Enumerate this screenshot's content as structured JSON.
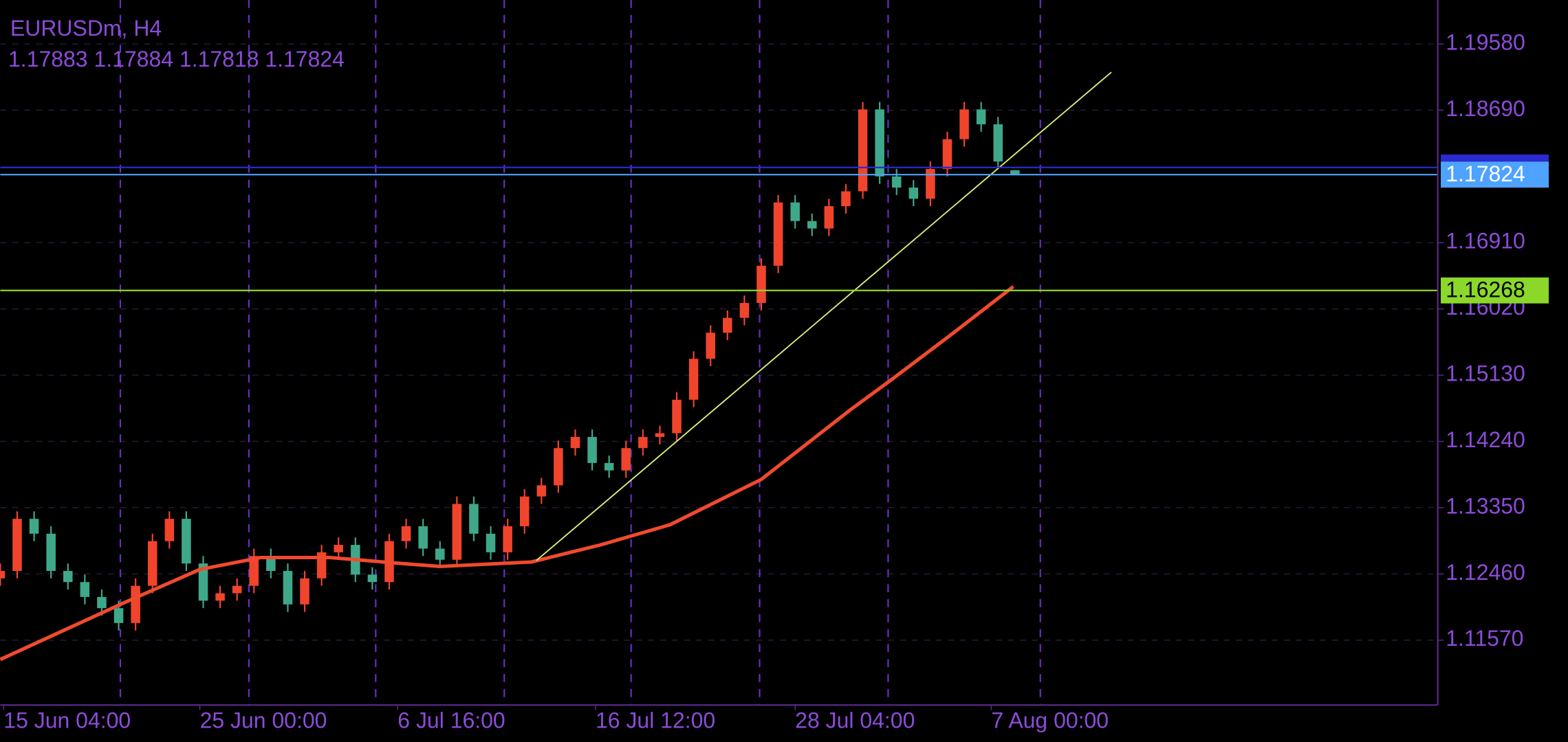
{
  "chart_data": {
    "type": "candlestick",
    "title": "EURUSDm, H4",
    "subtitle": "1.17883 1.17884 1.17818 1.17824",
    "xlim": [
      0,
      85
    ],
    "ylim": [
      1.10698,
      1.2017
    ],
    "yticks": [
      {
        "value": 1.1958,
        "label": "1.19580"
      },
      {
        "value": 1.1869,
        "label": "1.18690"
      },
      {
        "value": 1.1691,
        "label": "1.16910"
      },
      {
        "value": 1.1602,
        "label": "1.16020"
      },
      {
        "value": 1.1513,
        "label": "1.15130"
      },
      {
        "value": 1.1424,
        "label": "1.14240"
      },
      {
        "value": 1.1335,
        "label": "1.13350"
      },
      {
        "value": 1.1246,
        "label": "1.12460"
      },
      {
        "value": 1.1157,
        "label": "1.11570"
      }
    ],
    "xticks": [
      {
        "value": 0.2,
        "label": "15 Jun 04:00"
      },
      {
        "value": 11.8,
        "label": "25 Jun 00:00"
      },
      {
        "value": 23.5,
        "label": "6 Jul 16:00"
      },
      {
        "value": 35.2,
        "label": "16 Jul 12:00"
      },
      {
        "value": 47,
        "label": "28 Jul 04:00"
      },
      {
        "value": 58.6,
        "label": "7 Aug 00:00"
      }
    ],
    "separators": [
      7.1,
      14.7,
      22.2,
      29.8,
      37.3,
      44.9,
      52.5,
      61.5
    ],
    "grid": true,
    "up_color": "#f0452c",
    "down_color": "#3fa88a",
    "open": [
      1.124,
      1.125,
      1.132,
      1.13,
      1.125,
      1.1235,
      1.1215,
      1.12,
      1.118,
      1.123,
      1.129,
      1.132,
      1.126,
      1.121,
      1.122,
      1.123,
      1.127,
      1.125,
      1.1205,
      1.124,
      1.1275,
      1.1285,
      1.1245,
      1.1235,
      1.129,
      1.131,
      1.128,
      1.1265,
      1.134,
      1.13,
      1.1275,
      1.131,
      1.135,
      1.1365,
      1.1415,
      1.143,
      1.1395,
      1.1385,
      1.1415,
      1.143,
      1.1435,
      1.148,
      1.1535,
      1.157,
      1.159,
      1.161,
      1.166,
      1.1745,
      1.172,
      1.171,
      1.174,
      1.176,
      1.187,
      1.178,
      1.1765,
      1.175,
      1.179,
      1.183,
      1.187,
      1.185,
      1.17883
    ],
    "high": [
      1.126,
      1.133,
      1.133,
      1.131,
      1.126,
      1.1245,
      1.1225,
      1.121,
      1.124,
      1.13,
      1.133,
      1.133,
      1.127,
      1.123,
      1.124,
      1.128,
      1.128,
      1.126,
      1.125,
      1.1285,
      1.1295,
      1.1295,
      1.1255,
      1.13,
      1.132,
      1.132,
      1.129,
      1.135,
      1.135,
      1.131,
      1.132,
      1.136,
      1.1375,
      1.1425,
      1.144,
      1.144,
      1.1405,
      1.1425,
      1.144,
      1.1445,
      1.149,
      1.1545,
      1.158,
      1.16,
      1.162,
      1.167,
      1.1755,
      1.1755,
      1.173,
      1.175,
      1.177,
      1.188,
      1.188,
      1.179,
      1.1775,
      1.18,
      1.184,
      1.188,
      1.188,
      1.186,
      1.17884
    ],
    "low": [
      1.123,
      1.124,
      1.129,
      1.124,
      1.1225,
      1.1205,
      1.119,
      1.117,
      1.117,
      1.122,
      1.128,
      1.125,
      1.12,
      1.12,
      1.121,
      1.122,
      1.124,
      1.1195,
      1.1195,
      1.123,
      1.1265,
      1.1235,
      1.1225,
      1.1225,
      1.128,
      1.127,
      1.1255,
      1.1255,
      1.129,
      1.1265,
      1.1265,
      1.13,
      1.134,
      1.1355,
      1.1405,
      1.1385,
      1.1375,
      1.1375,
      1.1405,
      1.142,
      1.1425,
      1.147,
      1.1525,
      1.156,
      1.158,
      1.16,
      1.165,
      1.171,
      1.17,
      1.17,
      1.173,
      1.175,
      1.177,
      1.1755,
      1.174,
      1.174,
      1.178,
      1.182,
      1.184,
      1.179,
      1.17818
    ],
    "close": [
      1.125,
      1.132,
      1.13,
      1.125,
      1.1235,
      1.1215,
      1.12,
      1.118,
      1.123,
      1.129,
      1.132,
      1.126,
      1.121,
      1.122,
      1.123,
      1.127,
      1.125,
      1.1205,
      1.124,
      1.1275,
      1.1285,
      1.1245,
      1.1235,
      1.129,
      1.131,
      1.128,
      1.1265,
      1.134,
      1.13,
      1.1275,
      1.131,
      1.135,
      1.1365,
      1.1415,
      1.143,
      1.1395,
      1.1385,
      1.1415,
      1.143,
      1.1435,
      1.148,
      1.1535,
      1.157,
      1.159,
      1.161,
      1.166,
      1.1745,
      1.172,
      1.171,
      1.174,
      1.176,
      1.187,
      1.178,
      1.1765,
      1.175,
      1.179,
      1.183,
      1.187,
      1.185,
      1.18,
      1.17824
    ],
    "ma": {
      "color": "#f04a2e",
      "x": [
        0,
        7.1,
        11.8,
        15.4,
        19.5,
        23.7,
        26,
        31.4,
        35.5,
        39.6,
        45,
        50.3,
        52.7,
        56.2,
        59.9
      ],
      "values": [
        1.1131,
        1.1205,
        1.1252,
        1.1268,
        1.1268,
        1.126,
        1.1256,
        1.1262,
        1.1285,
        1.1312,
        1.1373,
        1.1467,
        1.1507,
        1.1567,
        1.1632
      ]
    },
    "trendline": {
      "color": "#d8f07a",
      "x": [
        31.7,
        65.7
      ],
      "values": [
        1.1264,
        1.192
      ]
    },
    "hlines": [
      {
        "value": 1.1792,
        "color": "#2a2ad0"
      },
      {
        "value": 1.17824,
        "color": "#4da3ff"
      },
      {
        "value": 1.16268,
        "color": "#8bd82a"
      }
    ]
  }
}
